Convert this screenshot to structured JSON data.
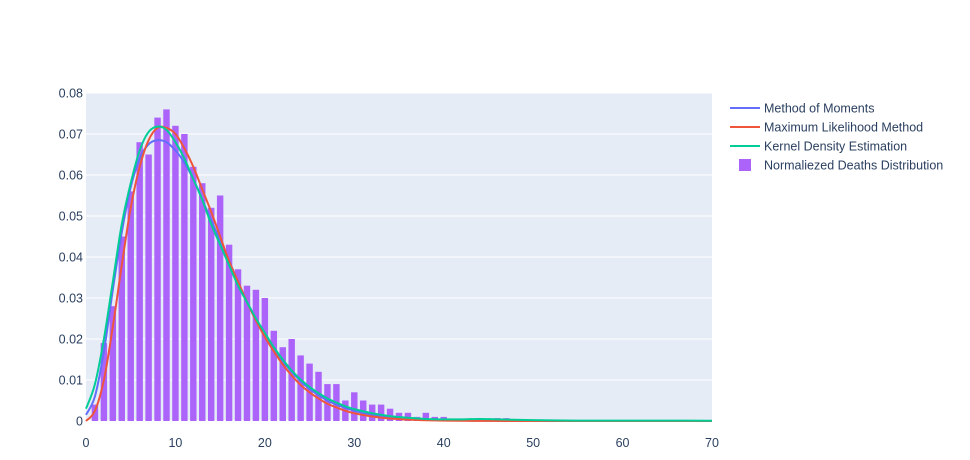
{
  "chart_data": {
    "type": "bar",
    "title": "",
    "xlabel": "",
    "ylabel": "",
    "xlim": [
      0,
      70
    ],
    "ylim": [
      0,
      0.08
    ],
    "x_ticks": [
      0,
      10,
      20,
      30,
      40,
      50,
      60,
      70
    ],
    "y_ticks": [
      0,
      0.01,
      0.02,
      0.03,
      0.04,
      0.05,
      0.06,
      0.07,
      0.08
    ],
    "y_tick_labels": [
      "0",
      "0.01",
      "0.02",
      "0.03",
      "0.04",
      "0.05",
      "0.06",
      "0.07",
      "0.08"
    ],
    "grid": true,
    "legend_position": "right",
    "colors": {
      "plot_background": "#e5ecf6",
      "grid": "#ffffff",
      "text": "#2a3f5f"
    },
    "legend": [
      {
        "name": "Method of Moments",
        "symbol": "line",
        "color": "#636efa"
      },
      {
        "name": "Maximum Likelihood Method",
        "symbol": "line",
        "color": "#ef553b"
      },
      {
        "name": "Kernel Density Estimation",
        "symbol": "line",
        "color": "#00cc96"
      },
      {
        "name": "Normaliezed Deaths Distribution",
        "symbol": "square",
        "color": "#ab63fa"
      }
    ],
    "histogram": {
      "name": "Normaliezed Deaths Distribution",
      "color": "#ab63fa",
      "x": [
        1,
        2,
        3,
        4,
        5,
        6,
        7,
        8,
        9,
        10,
        11,
        12,
        13,
        14,
        15,
        16,
        17,
        18,
        19,
        20,
        21,
        22,
        23,
        24,
        25,
        26,
        27,
        28,
        29,
        30,
        31,
        32,
        33,
        34,
        35,
        36,
        37,
        38,
        39,
        40,
        41,
        42,
        43,
        44,
        45,
        46,
        47,
        48,
        49,
        50,
        51,
        52,
        53,
        54,
        55,
        56,
        57,
        58,
        59,
        60,
        61,
        62,
        63,
        64,
        65,
        66,
        67,
        68,
        69
      ],
      "y": [
        0.004,
        0.019,
        0.028,
        0.045,
        0.056,
        0.068,
        0.065,
        0.074,
        0.076,
        0.072,
        0.07,
        0.062,
        0.058,
        0.052,
        0.055,
        0.043,
        0.037,
        0.033,
        0.032,
        0.03,
        0.022,
        0.018,
        0.02,
        0.016,
        0.014,
        0.012,
        0.009,
        0.009,
        0.005,
        0.007,
        0.005,
        0.004,
        0.004,
        0.003,
        0.002,
        0.002,
        0.001,
        0.002,
        0.001,
        0.001,
        0.0005,
        0.0004,
        0.0003,
        0.0003,
        0.0002,
        0.0007,
        0.0007,
        0.0002,
        0.0002,
        0.0001,
        0.0001,
        0.0001,
        0.0001,
        0.0001,
        0.0001,
        0.0001,
        0.0002,
        0.0001,
        0.0001,
        0.0001,
        0.0001,
        0.0001,
        0.0002,
        0.0002,
        0.0001,
        0.0001,
        0.0001,
        0.0001,
        0.0001
      ]
    },
    "series": [
      {
        "name": "Method of Moments",
        "color": "#636efa",
        "x": [
          0,
          1,
          2,
          3,
          4,
          5,
          6,
          7,
          8,
          9,
          10,
          11,
          12,
          13,
          14,
          15,
          16,
          17,
          18,
          19,
          20,
          21,
          22,
          23,
          24,
          25,
          26,
          27,
          28,
          29,
          30,
          32,
          34,
          36,
          38,
          40,
          45,
          50,
          55,
          60,
          65,
          70
        ],
        "y": [
          0.0015,
          0.006,
          0.017,
          0.032,
          0.046,
          0.057,
          0.064,
          0.0675,
          0.0685,
          0.068,
          0.066,
          0.063,
          0.059,
          0.054,
          0.049,
          0.044,
          0.039,
          0.034,
          0.029,
          0.025,
          0.021,
          0.0175,
          0.0145,
          0.012,
          0.0097,
          0.0078,
          0.0063,
          0.005,
          0.004,
          0.0032,
          0.0025,
          0.0015,
          0.0009,
          0.00055,
          0.00033,
          0.0002,
          6e-05,
          2e-05,
          1e-05,
          3e-06,
          1e-06,
          3e-07
        ]
      },
      {
        "name": "Maximum Likelihood Method",
        "color": "#ef553b",
        "x": [
          0,
          1,
          2,
          3,
          4,
          5,
          6,
          7,
          8,
          9,
          10,
          11,
          12,
          13,
          14,
          15,
          16,
          17,
          18,
          19,
          20,
          21,
          22,
          23,
          24,
          25,
          26,
          27,
          28,
          29,
          30,
          32,
          34,
          36,
          38,
          40,
          45,
          50,
          55,
          60,
          65,
          70
        ],
        "y": [
          0,
          0.0025,
          0.01,
          0.023,
          0.038,
          0.052,
          0.062,
          0.0685,
          0.0715,
          0.0715,
          0.07,
          0.0665,
          0.062,
          0.0565,
          0.051,
          0.045,
          0.039,
          0.034,
          0.029,
          0.0245,
          0.0205,
          0.017,
          0.0138,
          0.0111,
          0.0088,
          0.007,
          0.0055,
          0.0042,
          0.0033,
          0.0025,
          0.0019,
          0.0011,
          0.0006,
          0.00033,
          0.00018,
          0.0001,
          2e-05,
          4e-06,
          1e-06,
          2e-07,
          0,
          0
        ]
      },
      {
        "name": "Kernel Density Estimation",
        "color": "#00cc96",
        "x": [
          0,
          1,
          2,
          3,
          4,
          5,
          6,
          7,
          8,
          9,
          10,
          11,
          12,
          13,
          14,
          15,
          16,
          17,
          18,
          19,
          20,
          21,
          22,
          23,
          24,
          25,
          26,
          27,
          28,
          29,
          30,
          32,
          34,
          36,
          38,
          40,
          42,
          44,
          46,
          50,
          55,
          60,
          65,
          70
        ],
        "y": [
          0.003,
          0.009,
          0.02,
          0.034,
          0.048,
          0.058,
          0.066,
          0.0705,
          0.0718,
          0.071,
          0.068,
          0.064,
          0.059,
          0.054,
          0.048,
          0.043,
          0.038,
          0.033,
          0.029,
          0.025,
          0.0215,
          0.018,
          0.015,
          0.0123,
          0.0101,
          0.0083,
          0.0068,
          0.0055,
          0.0045,
          0.0036,
          0.0029,
          0.0019,
          0.0012,
          0.0008,
          0.0005,
          0.0004,
          0.0004,
          0.0005,
          0.0004,
          0.0002,
          0.0001,
          0.0001,
          0.0001,
          5e-05
        ]
      }
    ]
  }
}
